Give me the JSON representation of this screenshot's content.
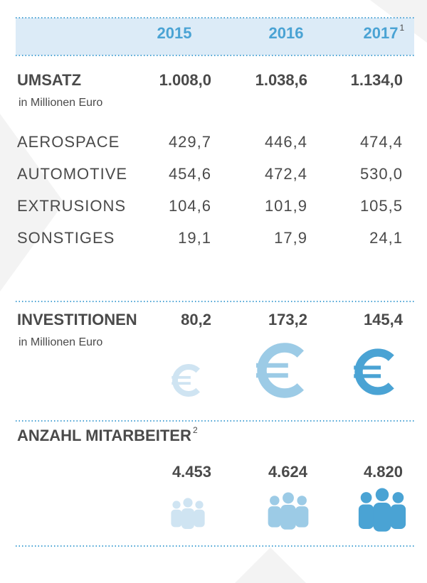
{
  "header": {
    "columns": [
      {
        "label": "2015"
      },
      {
        "label": "2016"
      },
      {
        "label": "2017",
        "footnote": "1"
      }
    ]
  },
  "umsatz": {
    "title": "UMSATZ",
    "unit": "in Millionen Euro",
    "values": [
      "1.008,0",
      "1.038,6",
      "1.134,0"
    ],
    "rows": [
      {
        "label": "AEROSPACE",
        "values": [
          "429,7",
          "446,4",
          "474,4"
        ]
      },
      {
        "label": "AUTOMOTIVE",
        "values": [
          "454,6",
          "472,4",
          "530,0"
        ]
      },
      {
        "label": "EXTRUSIONS",
        "values": [
          "104,6",
          "101,9",
          "105,5"
        ]
      },
      {
        "label": "SONSTIGES",
        "values": [
          "19,1",
          "17,9",
          "24,1"
        ]
      }
    ]
  },
  "investitionen": {
    "title": "INVESTITIONEN",
    "unit": "in Millionen Euro",
    "values": [
      "80,2",
      "173,2",
      "145,4"
    ]
  },
  "mitarbeiter": {
    "title": "ANZAHL MITARBEITER",
    "footnote": "2",
    "values": [
      "4.453",
      "4.624",
      "4.820"
    ]
  }
}
